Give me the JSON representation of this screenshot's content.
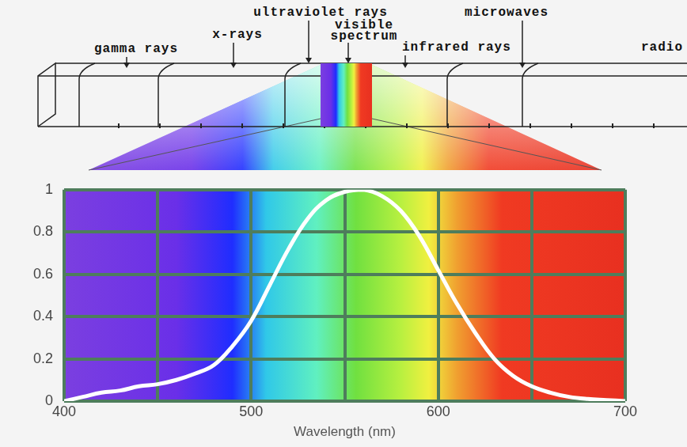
{
  "chart_data": {
    "type": "line",
    "x": [
      400,
      410,
      420,
      430,
      440,
      450,
      460,
      470,
      480,
      490,
      500,
      510,
      520,
      530,
      540,
      550,
      560,
      570,
      580,
      590,
      600,
      610,
      620,
      630,
      640,
      650,
      660,
      670,
      680,
      690,
      700
    ],
    "values": [
      0.0,
      0.02,
      0.04,
      0.05,
      0.07,
      0.08,
      0.1,
      0.13,
      0.17,
      0.26,
      0.38,
      0.55,
      0.72,
      0.86,
      0.95,
      0.99,
      1.0,
      0.97,
      0.9,
      0.78,
      0.62,
      0.46,
      0.32,
      0.2,
      0.12,
      0.07,
      0.04,
      0.02,
      0.01,
      0.005,
      0.0
    ],
    "color": "#ffffff",
    "x_label": "Wavelength (nm)",
    "xlim": [
      400,
      700
    ],
    "xticks": [
      400,
      500,
      600,
      700
    ],
    "ylim": [
      0,
      1
    ],
    "yticks": [
      0,
      0.2,
      0.4,
      0.6,
      0.8,
      1
    ],
    "grid": true
  },
  "spectrum_diagram": {
    "labels": [
      "gamma rays",
      "x-rays",
      "ultraviolet rays",
      "visible spectrum",
      "infrared rays",
      "microwaves",
      "radio"
    ]
  }
}
